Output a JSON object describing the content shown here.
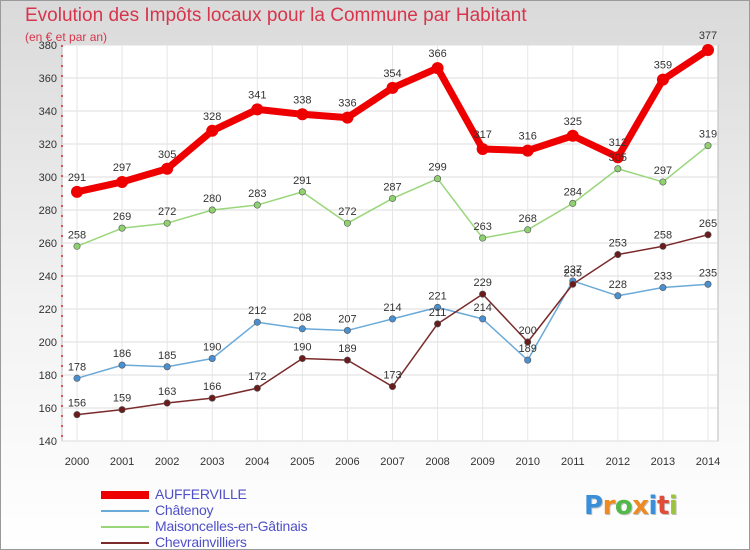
{
  "header": {
    "title": "Evolution des Impôts locaux pour la Commune par Habitant",
    "subtitle": "(en € et par an)"
  },
  "logo": {
    "letters": [
      {
        "ch": "P",
        "color": "#3a8fd8"
      },
      {
        "ch": "r",
        "color": "#ee8a22"
      },
      {
        "ch": "o",
        "color": "#52b84a"
      },
      {
        "ch": "x",
        "color": "#ee8a22"
      },
      {
        "ch": "i",
        "color": "#3a8fd8"
      },
      {
        "ch": "t",
        "color": "#e24a3a"
      },
      {
        "ch": "i",
        "color": "#9bc43c"
      }
    ]
  },
  "chart_data": {
    "type": "line",
    "title": "Evolution des Impôts locaux pour la Commune par Habitant",
    "subtitle": "(en € et par an)",
    "x": [
      "2000",
      "2001",
      "2002",
      "2003",
      "2004",
      "2005",
      "2006",
      "2007",
      "2008",
      "2009",
      "2010",
      "2011",
      "2012",
      "2013",
      "2014"
    ],
    "ylim": [
      140,
      380
    ],
    "yticks": [
      140,
      160,
      180,
      200,
      220,
      240,
      260,
      280,
      300,
      320,
      340,
      360,
      380
    ],
    "grid": true,
    "legend_position": "bottom-left",
    "series": [
      {
        "name": "AUFFERVILLE",
        "color": "#ee0000",
        "point_color": "#ee0000",
        "bold": true,
        "values": [
          291,
          297,
          305,
          328,
          341,
          338,
          336,
          354,
          366,
          317,
          316,
          325,
          312,
          359,
          377
        ],
        "labels": [
          "291",
          "297",
          "305",
          "328",
          "341",
          "338",
          "336",
          "354",
          "366",
          "317",
          "316",
          "325",
          "312",
          "359",
          "377"
        ]
      },
      {
        "name": "Châtenoy",
        "color": "#6aaad8",
        "point_color": "#4a8fd0",
        "bold": false,
        "values": [
          178,
          186,
          185,
          190,
          212,
          208,
          207,
          214,
          221,
          214,
          189,
          237,
          228,
          233,
          235
        ],
        "labels": [
          "178",
          "186",
          "185",
          "190",
          "212",
          "208",
          "207",
          "214",
          "221",
          "214",
          "189",
          "237",
          "228",
          "233",
          "235"
        ]
      },
      {
        "name": "Maisoncelles-en-Gâtinais",
        "color": "#99d67a",
        "point_color": "#8fd070",
        "bold": false,
        "values": [
          258,
          269,
          272,
          280,
          283,
          291,
          272,
          287,
          299,
          263,
          268,
          284,
          305,
          297,
          319
        ],
        "labels": [
          "258",
          "269",
          "272",
          "280",
          "283",
          "291",
          "272",
          "287",
          "299",
          "263",
          "268",
          "284",
          "305",
          "297",
          "319"
        ]
      },
      {
        "name": "Chevrainvilliers",
        "color": "#7a2a2a",
        "point_color": "#6a1c1c",
        "bold": false,
        "values": [
          156,
          159,
          163,
          166,
          172,
          190,
          189,
          173,
          211,
          229,
          200,
          235,
          253,
          258,
          265
        ],
        "labels": [
          "156",
          "159",
          "163",
          "166",
          "172",
          "190",
          "189",
          "173",
          "211",
          "229",
          "200",
          "235",
          "253",
          "258",
          "265"
        ]
      }
    ]
  }
}
